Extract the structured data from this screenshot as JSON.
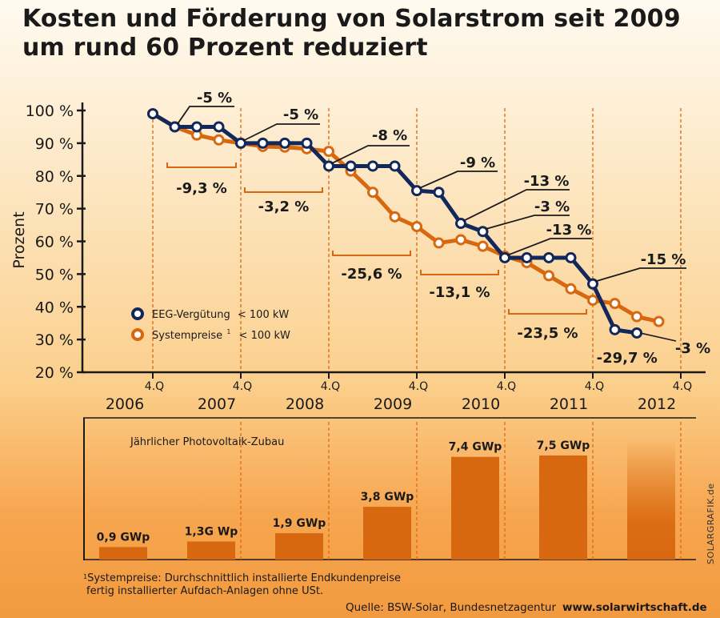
{
  "title": {
    "line1": "Kosten und Förderung von Solarstrom seit 2009",
    "line2": "um rund 60 Prozent reduziert"
  },
  "colors": {
    "eeg": "#12285a",
    "system": "#d8680f",
    "bar": "#d8680f",
    "text": "#1a1a1a"
  },
  "chart_data": [
    {
      "type": "line",
      "ylabel": "Prozent",
      "ylim": [
        20,
        100
      ],
      "yticks": [
        "100 %",
        "90 %",
        "80 %",
        "70 %",
        "60 %",
        "50 %",
        "40 %",
        "30 %",
        "20 %"
      ],
      "quarter_label": "4.Q",
      "years": [
        "2006",
        "2007",
        "2008",
        "2009",
        "2010",
        "2011",
        "2012"
      ],
      "legend": {
        "eeg_label": "EEG-Vergütung",
        "eeg_suffix": "< 100 kW",
        "system_label": "Systempreise",
        "system_sup": "1",
        "system_suffix": "< 100 kW"
      },
      "series": [
        {
          "name": "EEG-Vergütung < 100 kW",
          "key": "eeg",
          "points": [
            [
              0,
              99
            ],
            [
              1,
              95
            ],
            [
              2,
              95
            ],
            [
              3,
              95
            ],
            [
              4,
              90
            ],
            [
              5,
              90
            ],
            [
              6,
              90
            ],
            [
              7,
              90
            ],
            [
              8,
              83
            ],
            [
              9,
              83
            ],
            [
              10,
              83
            ],
            [
              11,
              83
            ],
            [
              12,
              75.5
            ],
            [
              13,
              75
            ],
            [
              14,
              65.5
            ],
            [
              15,
              63
            ],
            [
              16,
              55
            ],
            [
              17,
              55
            ],
            [
              18,
              55
            ],
            [
              19,
              55
            ],
            [
              20,
              47
            ],
            [
              21,
              33
            ],
            [
              22,
              32
            ]
          ]
        },
        {
          "name": "Systempreise < 100 kW",
          "key": "system",
          "points": [
            [
              0,
              99
            ],
            [
              1,
              95
            ],
            [
              2,
              92.5
            ],
            [
              3,
              91
            ],
            [
              4,
              90
            ],
            [
              5,
              89
            ],
            [
              6,
              88.8
            ],
            [
              7,
              88.3
            ],
            [
              8,
              87.5
            ],
            [
              9,
              81.5
            ],
            [
              10,
              75
            ],
            [
              11,
              67.5
            ],
            [
              12,
              64.5
            ],
            [
              13,
              59.5
            ],
            [
              14,
              60.5
            ],
            [
              15,
              58.5
            ],
            [
              16,
              55.5
            ],
            [
              17,
              53.5
            ],
            [
              18,
              49.5
            ],
            [
              19,
              45.5
            ],
            [
              20,
              42
            ],
            [
              21,
              41
            ],
            [
              22,
              37
            ],
            [
              23,
              35.5
            ]
          ]
        }
      ],
      "eeg_annotations": [
        "-5 %",
        "-5 %",
        "-8 %",
        "-9 %",
        "-13 %",
        "-3 %",
        "-13 %",
        "-15 %",
        "-3 %"
      ],
      "system_annotations": [
        "-9,3 %",
        "-3,2 %",
        "-25,6 %",
        "-13,1 %",
        "-23,5 %",
        "-29,7 %"
      ]
    },
    {
      "type": "bar",
      "title": "Jährlicher Photovoltaik-Zubau",
      "unit": "GWp",
      "categories": [
        "2006",
        "2007",
        "2008",
        "2009",
        "2010",
        "2011",
        "2012"
      ],
      "values": [
        0.9,
        1.3,
        1.9,
        3.8,
        7.4,
        7.5,
        null
      ],
      "labels": [
        "0,9 GWp",
        "1,3G Wp",
        "1,9 GWp",
        "3,8 GWp",
        "7,4 GWp",
        "7,5 GWp",
        ""
      ]
    }
  ],
  "footnote": {
    "sup": "1",
    "line1": "Systempreise: Durchschnittlich installierte Endkundenpreise",
    "line2": "fertig installierter Aufdach-Anlagen ohne USt."
  },
  "source": {
    "text": "Quelle: BSW-Solar, Bundesnetzagentur",
    "url": "www.solarwirtschaft.de"
  },
  "credit": "SOLARGRAFIK.de"
}
